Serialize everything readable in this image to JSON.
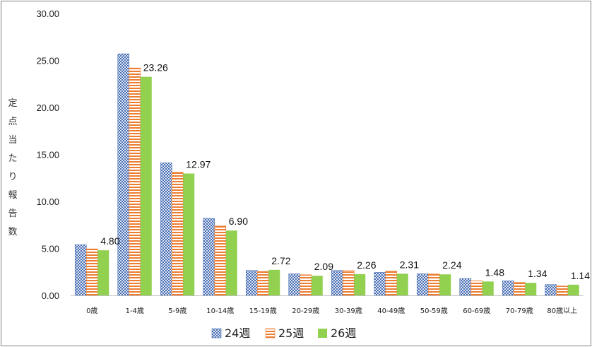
{
  "chart_data": {
    "type": "bar",
    "ylabel": "定点当たり報告数",
    "ylim": [
      0,
      30
    ],
    "yticks": [
      "0.00",
      "5.00",
      "10.00",
      "15.00",
      "20.00",
      "25.00",
      "30.00"
    ],
    "grid": false,
    "legend_position": "bottom",
    "categories": [
      "0歳",
      "1-4歳",
      "5-9歳",
      "10-14歳",
      "15-19歳",
      "20-29歳",
      "30-39歳",
      "40-49歳",
      "50-59歳",
      "60-69歳",
      "70-79歳",
      "80歳以上"
    ],
    "series": [
      {
        "name": "24週",
        "color": "#4a6fb5",
        "pattern": "checker",
        "values": [
          5.4,
          25.7,
          14.1,
          8.2,
          2.65,
          2.3,
          2.65,
          2.45,
          2.3,
          1.8,
          1.55,
          1.15
        ]
      },
      {
        "name": "25週",
        "color": "#ed7d31",
        "pattern": "hstripe",
        "values": [
          4.95,
          24.2,
          13.1,
          7.4,
          2.55,
          2.2,
          2.65,
          2.6,
          2.3,
          1.55,
          1.4,
          1.0
        ]
      },
      {
        "name": "26週",
        "color": "#92d050",
        "pattern": "solid",
        "values": [
          4.8,
          23.26,
          12.97,
          6.9,
          2.72,
          2.09,
          2.26,
          2.31,
          2.24,
          1.48,
          1.34,
          1.14
        ]
      }
    ],
    "data_labels": [
      "4.80",
      "23.26",
      "12.97",
      "6.90",
      "2.72",
      "2.09",
      "2.26",
      "2.31",
      "2.24",
      "1.48",
      "1.34",
      "1.14"
    ],
    "data_label_series": 2
  }
}
